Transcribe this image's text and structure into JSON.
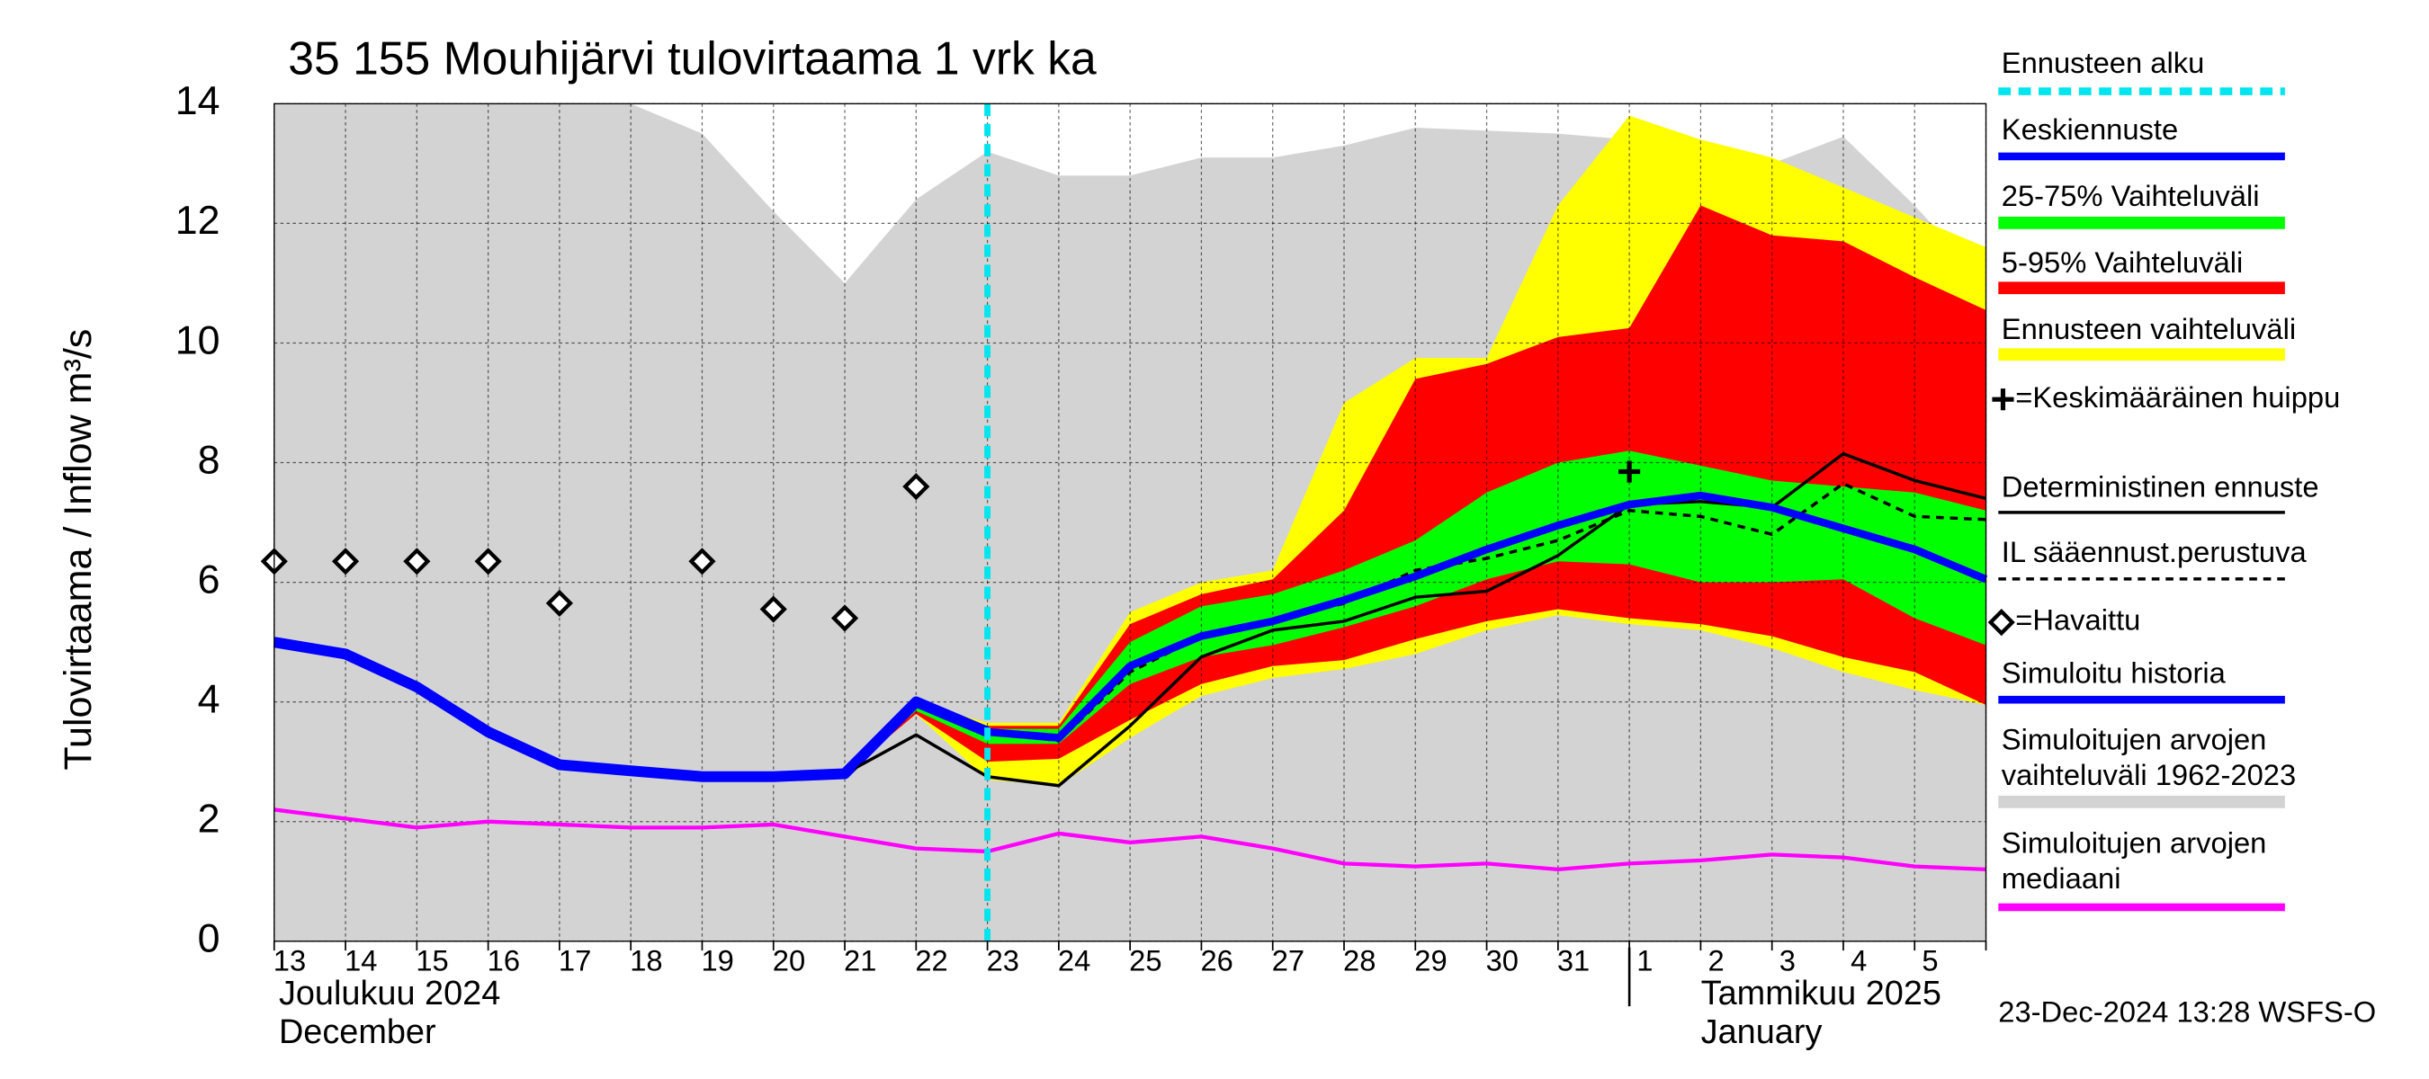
{
  "chart_data": {
    "type": "forecast-band",
    "title": "35 155 Mouhijärvi tulovirtaama 1 vrk ka",
    "ylabel": "Tulovirtaama / Inflow   m³/s",
    "categories": [
      "13",
      "14",
      "15",
      "16",
      "17",
      "18",
      "19",
      "20",
      "21",
      "22",
      "23",
      "24",
      "25",
      "26",
      "27",
      "28",
      "29",
      "30",
      "31",
      "1",
      "2",
      "3",
      "4",
      "5",
      null
    ],
    "months": [
      [
        "Joulukuu  2024",
        "December"
      ],
      [
        "Tammikuu  2025",
        "January"
      ]
    ],
    "ylim": [
      0,
      14
    ],
    "yticks": [
      0,
      2,
      4,
      6,
      8,
      10,
      12,
      14
    ],
    "grid": true,
    "footer": "23-Dec-2024 13:28 WSFS-O",
    "series": [
      {
        "name": "Ennusteen alku",
        "kind": "vline",
        "color": "#00e5ee",
        "at": 10
      },
      {
        "name": "Keskiennuste",
        "kind": "line",
        "color": "#0000ff",
        "width": 5,
        "values": [
          null,
          null,
          null,
          null,
          null,
          null,
          null,
          null,
          2.8,
          4.0,
          3.5,
          3.4,
          4.6,
          5.1,
          5.35,
          5.7,
          6.1,
          6.55,
          6.95,
          7.3,
          7.45,
          7.25,
          6.9,
          6.55,
          6.05
        ]
      },
      {
        "name": "25-75% Vaihteluväli",
        "kind": "band",
        "color": "#00ff00",
        "high": [
          null,
          null,
          null,
          null,
          null,
          null,
          null,
          null,
          2.8,
          4.0,
          3.55,
          3.55,
          5.0,
          5.6,
          5.8,
          6.2,
          6.7,
          7.5,
          8.0,
          8.2,
          7.95,
          7.7,
          7.6,
          7.5,
          7.2
        ],
        "low": [
          null,
          null,
          null,
          null,
          null,
          null,
          null,
          null,
          2.8,
          3.85,
          3.3,
          3.3,
          4.3,
          4.75,
          4.95,
          5.25,
          5.6,
          6.05,
          6.35,
          6.3,
          6.0,
          6.0,
          6.05,
          5.4,
          4.95
        ]
      },
      {
        "name": "5-95% Vaihteluväli",
        "kind": "band",
        "color": "#ff0000",
        "high": [
          null,
          null,
          null,
          null,
          null,
          null,
          null,
          null,
          2.8,
          4.0,
          3.6,
          3.6,
          5.3,
          5.8,
          6.05,
          7.2,
          9.4,
          9.65,
          10.1,
          10.25,
          12.3,
          11.8,
          11.7,
          11.1,
          10.55
        ],
        "low": [
          null,
          null,
          null,
          null,
          null,
          null,
          null,
          null,
          2.8,
          3.8,
          3.0,
          3.05,
          3.7,
          4.3,
          4.6,
          4.7,
          5.05,
          5.35,
          5.55,
          5.4,
          5.3,
          5.1,
          4.75,
          4.5,
          3.95
        ]
      },
      {
        "name": "Ennusteen vaihteluväli",
        "kind": "band",
        "color": "#ffff00",
        "high": [
          null,
          null,
          null,
          null,
          null,
          null,
          null,
          null,
          2.8,
          4.0,
          3.65,
          3.65,
          5.5,
          6.0,
          6.2,
          9.0,
          9.75,
          9.75,
          12.3,
          13.8,
          13.4,
          13.1,
          12.6,
          12.1,
          11.6
        ],
        "low": [
          null,
          null,
          null,
          null,
          null,
          null,
          null,
          null,
          2.8,
          3.8,
          2.7,
          2.6,
          3.4,
          4.1,
          4.4,
          4.55,
          4.8,
          5.2,
          5.45,
          5.3,
          5.2,
          4.9,
          4.5,
          4.2,
          3.95
        ]
      },
      {
        "name": "=Keskimääräinen huippu",
        "kind": "plus",
        "color": "#000000",
        "values": [
          null,
          null,
          null,
          null,
          null,
          null,
          null,
          null,
          null,
          null,
          null,
          null,
          null,
          null,
          null,
          null,
          null,
          null,
          null,
          7.85,
          null,
          null,
          null,
          null,
          null
        ]
      },
      {
        "name": "Deterministinen ennuste",
        "kind": "line",
        "color": "#000000",
        "width": 2,
        "values": [
          null,
          null,
          null,
          null,
          null,
          null,
          null,
          null,
          2.8,
          3.45,
          2.75,
          2.6,
          3.6,
          4.75,
          5.2,
          5.35,
          5.75,
          5.85,
          6.45,
          7.3,
          7.35,
          7.25,
          8.15,
          7.7,
          7.4
        ]
      },
      {
        "name": "IL sääennust.perustuva",
        "kind": "dashed",
        "color": "#000000",
        "width": 2,
        "values": [
          null,
          null,
          null,
          null,
          null,
          null,
          null,
          null,
          null,
          null,
          3.5,
          3.35,
          4.5,
          5.1,
          5.35,
          5.65,
          6.2,
          6.4,
          6.7,
          7.2,
          7.1,
          6.8,
          7.65,
          7.1,
          7.05
        ]
      },
      {
        "name": "=Havaittu",
        "kind": "markers",
        "color": "#000000",
        "values": [
          6.35,
          6.35,
          6.35,
          6.35,
          5.65,
          null,
          6.35,
          5.55,
          5.4,
          7.6,
          null,
          null,
          null,
          null,
          null,
          null,
          null,
          null,
          null,
          null,
          null,
          null,
          null,
          null,
          null
        ]
      },
      {
        "name": "Simuloitu historia",
        "kind": "line",
        "color": "#0000ff",
        "width": 7,
        "values": [
          5.0,
          4.8,
          4.25,
          3.5,
          2.95,
          2.85,
          2.75,
          2.75,
          2.8,
          4.0,
          3.5,
          null,
          null,
          null,
          null,
          null,
          null,
          null,
          null,
          null,
          null,
          null,
          null,
          null,
          null
        ]
      },
      {
        "name": "Simuloitujen arvojen vaihteluväli 1962-2023",
        "kind": "band",
        "color": "#d3d3d3",
        "high": [
          14,
          14,
          14,
          14,
          14,
          14,
          13.5,
          12.2,
          11.0,
          12.4,
          13.2,
          12.8,
          12.8,
          13.1,
          13.1,
          13.3,
          13.6,
          13.55,
          13.5,
          13.4,
          13.4,
          13.0,
          13.45,
          12.3,
          11.0
        ],
        "low": [
          0,
          0,
          0,
          0,
          0,
          0,
          0,
          0,
          0,
          0,
          0,
          0,
          0,
          0,
          0,
          0,
          0,
          0,
          0,
          0,
          0,
          0,
          0,
          0,
          0
        ]
      },
      {
        "name": "Simuloitujen arvojen mediaani",
        "kind": "line",
        "color": "#ff00ff",
        "width": 2.5,
        "values": [
          2.2,
          2.05,
          1.9,
          2.0,
          1.95,
          1.9,
          1.9,
          1.95,
          1.75,
          1.55,
          1.5,
          1.8,
          1.65,
          1.75,
          1.55,
          1.3,
          1.25,
          1.3,
          1.2,
          1.3,
          1.35,
          1.45,
          1.4,
          1.25,
          1.2
        ]
      }
    ]
  }
}
